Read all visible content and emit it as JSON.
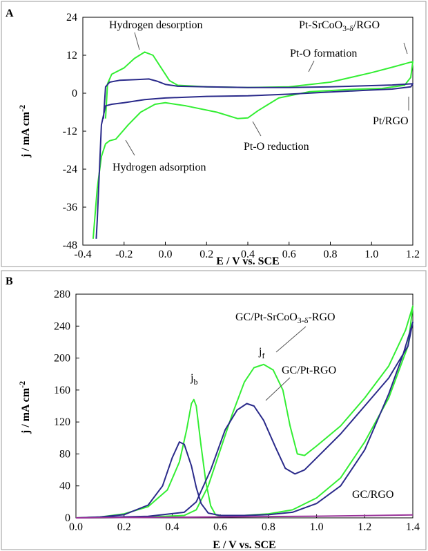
{
  "colors": {
    "green": "#33ee33",
    "navy": "#2a2a8a",
    "purple": "#993399"
  },
  "chart_data": [
    {
      "panel": "A",
      "type": "line",
      "xlabel": "E / V vs. SCE",
      "ylabel_main": "j / mA cm",
      "ylabel_sup": "-2",
      "xlim": [
        -0.4,
        1.2
      ],
      "ylim": [
        -48,
        24
      ],
      "xticks": [
        "-0.4",
        "-0.2",
        "0.0",
        "0.2",
        "0.4",
        "0.6",
        "0.8",
        "1.0",
        "1.2"
      ],
      "yticks": [
        "-48",
        "-36",
        "-24",
        "-12",
        "0",
        "12",
        "24"
      ],
      "annotations": {
        "hydrogen_desorption": "Hydrogen desorption",
        "hydrogen_adsorption": "Hydrogen adsorption",
        "pt_o_formation": "Pt-O formation",
        "pt_o_reduction": "Pt-O reduction",
        "pt_rgo": "Pt/RGO",
        "pt_srcoo_main": "Pt-SrCoO",
        "pt_srcoo_sub": "3-δ",
        "pt_srcoo_tail": "/RGO"
      },
      "series": [
        {
          "label": "Pt-SrCoO3-δ/RGO",
          "color": "#33ee33",
          "points": [
            [
              -0.29,
              -8
            ],
            [
              -0.28,
              3
            ],
            [
              -0.26,
              6
            ],
            [
              -0.2,
              8
            ],
            [
              -0.15,
              11
            ],
            [
              -0.1,
              13
            ],
            [
              -0.06,
              12
            ],
            [
              -0.02,
              8
            ],
            [
              0.02,
              4
            ],
            [
              0.06,
              2.5
            ],
            [
              0.2,
              2
            ],
            [
              0.4,
              1.8
            ],
            [
              0.6,
              2
            ],
            [
              0.8,
              3.5
            ],
            [
              1.0,
              6.5
            ],
            [
              1.1,
              8.2
            ],
            [
              1.2,
              10
            ],
            [
              1.19,
              5
            ],
            [
              1.16,
              2.5
            ],
            [
              1.05,
              1.5
            ],
            [
              0.9,
              1.2
            ],
            [
              0.7,
              0.5
            ],
            [
              0.55,
              -1.5
            ],
            [
              0.45,
              -5.5
            ],
            [
              0.4,
              -7.8
            ],
            [
              0.35,
              -8
            ],
            [
              0.25,
              -6
            ],
            [
              0.1,
              -4
            ],
            [
              0.0,
              -3
            ],
            [
              -0.05,
              -3.5
            ],
            [
              -0.12,
              -6
            ],
            [
              -0.18,
              -10
            ],
            [
              -0.24,
              -14.5
            ],
            [
              -0.27,
              -15
            ],
            [
              -0.29,
              -16
            ],
            [
              -0.31,
              -20
            ],
            [
              -0.33,
              -30
            ],
            [
              -0.345,
              -42
            ],
            [
              -0.35,
              -46
            ]
          ]
        },
        {
          "label": "Pt/RGO",
          "color": "#2a2a8a",
          "points": [
            [
              -0.3,
              -8
            ],
            [
              -0.29,
              2
            ],
            [
              -0.27,
              3.5
            ],
            [
              -0.22,
              4.1
            ],
            [
              -0.14,
              4.3
            ],
            [
              -0.08,
              4.5
            ],
            [
              -0.04,
              3.8
            ],
            [
              0.0,
              2.8
            ],
            [
              0.06,
              2.2
            ],
            [
              0.2,
              2
            ],
            [
              0.4,
              1.8
            ],
            [
              0.6,
              1.8
            ],
            [
              0.8,
              2
            ],
            [
              1.0,
              2.4
            ],
            [
              1.1,
              2.6
            ],
            [
              1.2,
              3
            ],
            [
              1.19,
              2
            ],
            [
              1.1,
              1.3
            ],
            [
              1.0,
              1
            ],
            [
              0.8,
              0.4
            ],
            [
              0.6,
              -0.3
            ],
            [
              0.4,
              -0.8
            ],
            [
              0.2,
              -1
            ],
            [
              0.0,
              -1.5
            ],
            [
              -0.1,
              -2
            ],
            [
              -0.2,
              -3
            ],
            [
              -0.26,
              -3.5
            ],
            [
              -0.29,
              -4
            ],
            [
              -0.31,
              -10
            ],
            [
              -0.32,
              -25
            ],
            [
              -0.33,
              -40
            ],
            [
              -0.335,
              -46
            ]
          ]
        }
      ]
    },
    {
      "panel": "B",
      "type": "line",
      "xlabel": "E / V vs. SCE",
      "ylabel_main": "j / mA cm",
      "ylabel_sup": "-2",
      "xlim": [
        0.0,
        1.4
      ],
      "ylim": [
        0,
        280
      ],
      "xticks": [
        "0.0",
        "0.2",
        "0.4",
        "0.6",
        "0.8",
        "1.0",
        "1.2",
        "1.4"
      ],
      "yticks": [
        "0",
        "40",
        "80",
        "120",
        "160",
        "200",
        "240",
        "280"
      ],
      "annotations": {
        "jb_main": "j",
        "jb_sub": "b",
        "jf_main": "j",
        "jf_sub": "f",
        "gc_pt_rgo": "GC/Pt-RGO",
        "gc_rgo": "GC/RGO",
        "gc_srcoo_main": "GC/Pt-SrCoO",
        "gc_srcoo_sub": "3-δ",
        "gc_srcoo_tail": "-RGO"
      },
      "series": [
        {
          "label": "GC/Pt-SrCoO3-δ-RGO",
          "color": "#33ee33",
          "points": [
            [
              0.0,
              0
            ],
            [
              0.1,
              1
            ],
            [
              0.2,
              5
            ],
            [
              0.3,
              14
            ],
            [
              0.38,
              35
            ],
            [
              0.43,
              70
            ],
            [
              0.46,
              110
            ],
            [
              0.48,
              143
            ],
            [
              0.49,
              148
            ],
            [
              0.5,
              140
            ],
            [
              0.52,
              90
            ],
            [
              0.54,
              45
            ],
            [
              0.56,
              15
            ],
            [
              0.58,
              4
            ],
            [
              0.6,
              2
            ],
            [
              0.7,
              3
            ],
            [
              0.8,
              5
            ],
            [
              0.9,
              10
            ],
            [
              1.0,
              25
            ],
            [
              1.1,
              50
            ],
            [
              1.2,
              95
            ],
            [
              1.3,
              150
            ],
            [
              1.38,
              215
            ],
            [
              1.4,
              265
            ],
            [
              1.37,
              235
            ],
            [
              1.3,
              190
            ],
            [
              1.2,
              150
            ],
            [
              1.1,
              115
            ],
            [
              1.0,
              90
            ],
            [
              0.95,
              78
            ],
            [
              0.92,
              80
            ],
            [
              0.89,
              115
            ],
            [
              0.86,
              160
            ],
            [
              0.82,
              185
            ],
            [
              0.78,
              192
            ],
            [
              0.74,
              188
            ],
            [
              0.7,
              170
            ],
            [
              0.65,
              130
            ],
            [
              0.6,
              85
            ],
            [
              0.55,
              40
            ],
            [
              0.5,
              10
            ],
            [
              0.45,
              3
            ],
            [
              0.3,
              1
            ],
            [
              0.1,
              0
            ],
            [
              0.0,
              0
            ]
          ]
        },
        {
          "label": "GC/Pt-RGO",
          "color": "#2a2a8a",
          "points": [
            [
              0.0,
              0
            ],
            [
              0.1,
              1
            ],
            [
              0.2,
              4
            ],
            [
              0.3,
              16
            ],
            [
              0.36,
              40
            ],
            [
              0.4,
              75
            ],
            [
              0.43,
              95
            ],
            [
              0.45,
              92
            ],
            [
              0.48,
              65
            ],
            [
              0.5,
              38
            ],
            [
              0.52,
              18
            ],
            [
              0.55,
              6
            ],
            [
              0.6,
              3
            ],
            [
              0.7,
              3
            ],
            [
              0.8,
              4
            ],
            [
              0.9,
              7
            ],
            [
              1.0,
              18
            ],
            [
              1.1,
              40
            ],
            [
              1.2,
              85
            ],
            [
              1.3,
              155
            ],
            [
              1.36,
              205
            ],
            [
              1.4,
              245
            ],
            [
              1.38,
              215
            ],
            [
              1.3,
              175
            ],
            [
              1.2,
              140
            ],
            [
              1.1,
              105
            ],
            [
              1.0,
              75
            ],
            [
              0.95,
              60
            ],
            [
              0.91,
              55
            ],
            [
              0.87,
              62
            ],
            [
              0.83,
              88
            ],
            [
              0.78,
              122
            ],
            [
              0.74,
              140
            ],
            [
              0.71,
              143
            ],
            [
              0.67,
              135
            ],
            [
              0.62,
              110
            ],
            [
              0.56,
              60
            ],
            [
              0.5,
              20
            ],
            [
              0.45,
              7
            ],
            [
              0.3,
              2
            ],
            [
              0.1,
              0.5
            ],
            [
              0.0,
              0
            ]
          ]
        },
        {
          "label": "GC/RGO",
          "color": "#993399",
          "points": [
            [
              0.0,
              0
            ],
            [
              0.2,
              0.4
            ],
            [
              0.4,
              0.8
            ],
            [
              0.6,
              1.2
            ],
            [
              0.8,
              1.6
            ],
            [
              1.0,
              2.1
            ],
            [
              1.2,
              2.8
            ],
            [
              1.4,
              3.6
            ]
          ]
        }
      ]
    }
  ]
}
